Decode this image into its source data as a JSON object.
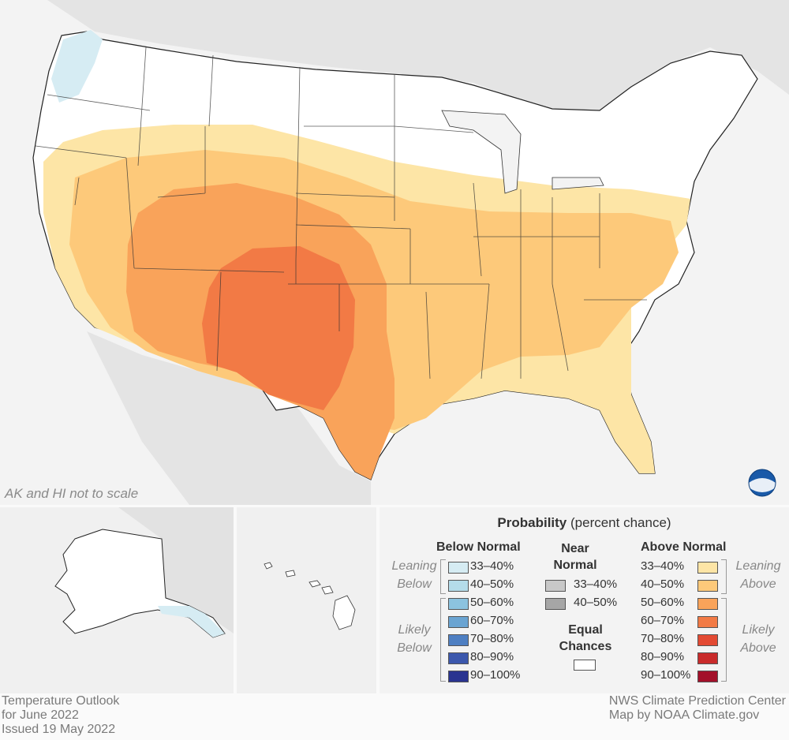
{
  "map": {
    "scale_note": "AK and HI not to scale",
    "logo": "noaa-logo"
  },
  "legend": {
    "title_bold": "Probability",
    "title_rest": "(percent chance)",
    "below": {
      "heading": "Below Normal",
      "leaning_label": [
        "Leaning",
        "Below"
      ],
      "likely_label": [
        "Likely",
        "Below"
      ],
      "rows": [
        {
          "label": "33–40%",
          "color": "#d6ecf3"
        },
        {
          "label": "40–50%",
          "color": "#b4dcea"
        },
        {
          "label": "50–60%",
          "color": "#8cc3df"
        },
        {
          "label": "60–70%",
          "color": "#6aa4d2"
        },
        {
          "label": "70–80%",
          "color": "#4e7fc2"
        },
        {
          "label": "80–90%",
          "color": "#3c58ad"
        },
        {
          "label": "90–100%",
          "color": "#2a3490"
        }
      ]
    },
    "near": {
      "heading": [
        "Near",
        "Normal"
      ],
      "rows": [
        {
          "label": "33–40%",
          "color": "#c8c8c8"
        },
        {
          "label": "40–50%",
          "color": "#a6a6a6"
        }
      ],
      "equal_heading": [
        "Equal",
        "Chances"
      ],
      "equal_color": "#ffffff"
    },
    "above": {
      "heading": "Above Normal",
      "leaning_label": [
        "Leaning",
        "Above"
      ],
      "likely_label": [
        "Likely",
        "Above"
      ],
      "rows": [
        {
          "label": "33–40%",
          "color": "#fde5a6"
        },
        {
          "label": "40–50%",
          "color": "#fdc97a"
        },
        {
          "label": "50–60%",
          "color": "#f9a35a"
        },
        {
          "label": "60–70%",
          "color": "#f27a45"
        },
        {
          "label": "70–80%",
          "color": "#e34a33"
        },
        {
          "label": "80–90%",
          "color": "#c92b2b"
        },
        {
          "label": "90–100%",
          "color": "#a3102a"
        }
      ]
    }
  },
  "footer": {
    "left": [
      "Temperature Outlook",
      "for June 2022",
      "Issued 19 May 2022"
    ],
    "right": [
      "NWS Climate Prediction Center",
      "Map by NOAA Climate.gov"
    ]
  }
}
